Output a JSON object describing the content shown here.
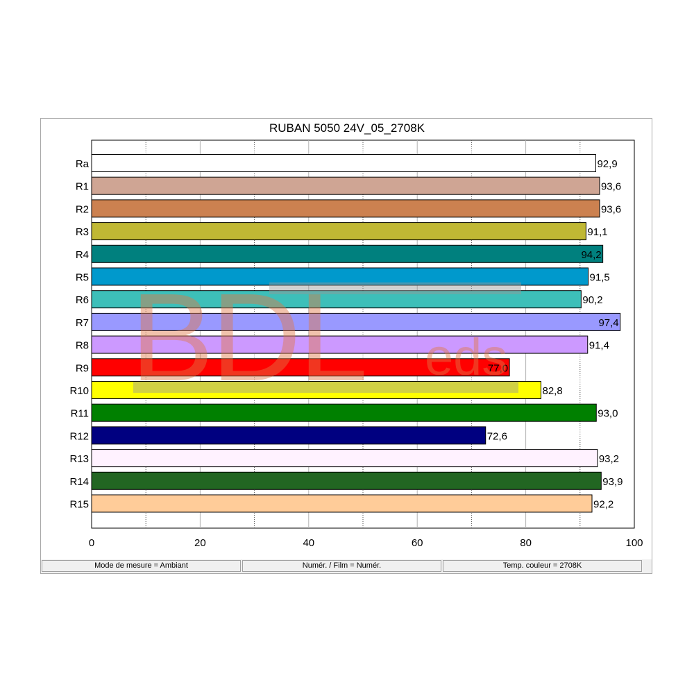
{
  "chart_data": {
    "type": "bar",
    "orientation": "horizontal",
    "title": "RUBAN 5050 24V_05_2708K",
    "categories": [
      "Ra",
      "R1",
      "R2",
      "R3",
      "R4",
      "R5",
      "R6",
      "R7",
      "R8",
      "R9",
      "R10",
      "R11",
      "R12",
      "R13",
      "R14",
      "R15"
    ],
    "values": [
      92.9,
      93.6,
      93.6,
      91.1,
      94.2,
      91.5,
      90.2,
      97.4,
      91.4,
      77.0,
      82.8,
      93.0,
      72.6,
      93.2,
      93.9,
      92.2
    ],
    "value_labels": [
      "92,9",
      "93,6",
      "93,6",
      "91,1",
      "94,2",
      "91,5",
      "90,2",
      "97,4",
      "91,4",
      "77,0",
      "82,8",
      "93,0",
      "72,6",
      "93,2",
      "93,9",
      "92,2"
    ],
    "colors": [
      "#ffffff",
      "#cfa594",
      "#cc8150",
      "#c0b834",
      "#00807e",
      "#0099cc",
      "#3dbfb9",
      "#9999ff",
      "#cc99ff",
      "#ff0000",
      "#ffff00",
      "#008000",
      "#000080",
      "#fff2ff",
      "#226622",
      "#ffcc99"
    ],
    "label_inside": [
      false,
      false,
      false,
      false,
      true,
      false,
      false,
      true,
      false,
      true,
      false,
      false,
      false,
      false,
      false,
      false
    ],
    "xlim": [
      0,
      100
    ],
    "xticks": [
      0,
      20,
      40,
      60,
      80,
      100
    ],
    "gridlines": [
      10,
      20,
      30,
      40,
      50,
      60,
      70,
      80,
      90
    ],
    "grid": true
  },
  "status_bar": {
    "mode": "Mode de mesure = Ambiant",
    "film": "Numér. / Film = Numér.",
    "temp": "Temp. couleur = 2708K"
  },
  "watermark": {
    "main": "BDL",
    "sub": "eds"
  }
}
